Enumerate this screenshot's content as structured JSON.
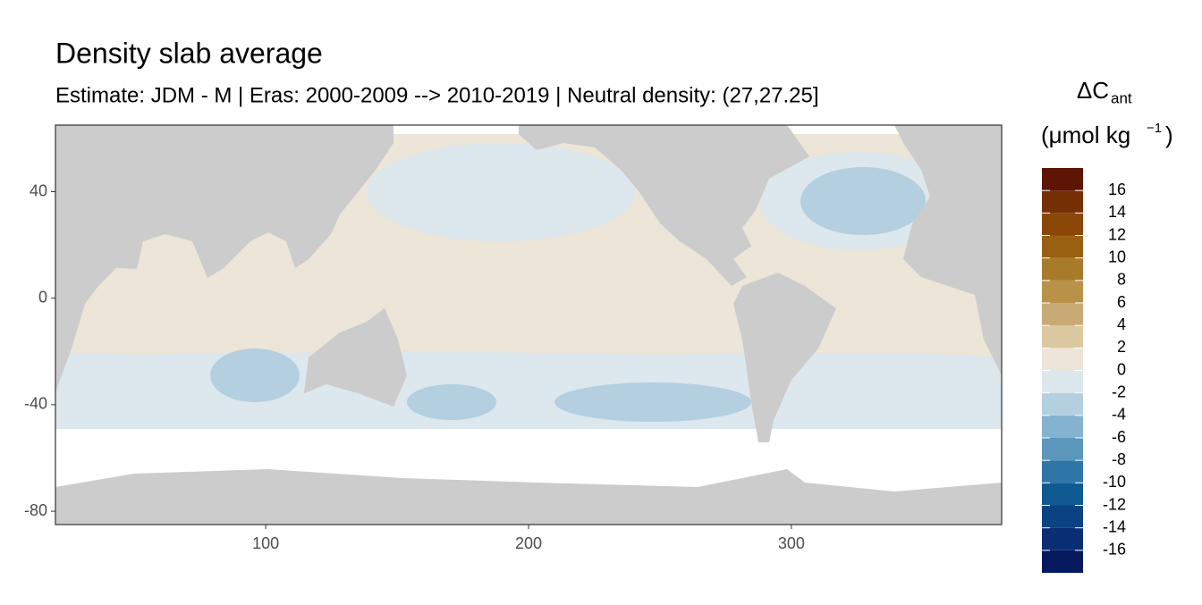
{
  "chart_data": {
    "type": "raster",
    "title": "Density slab average",
    "subtitle": "Estimate: JDM - M | Eras: 2000-2009 --> 2010-2019 | Neutral density: (27,27.25]",
    "xlim": [
      20,
      380
    ],
    "ylim": [
      -85,
      65
    ],
    "xticks": [
      100,
      200,
      300
    ],
    "yticks": [
      -80,
      -40,
      0,
      40
    ],
    "grid": true,
    "legend": {
      "title": "ΔC",
      "title_subscript": "ant",
      "unit": "(μmol kg",
      "unit_superscript": "−1",
      "unit_close": ")",
      "breaks": [
        -18,
        -16,
        -14,
        -12,
        -10,
        -8,
        -6,
        -4,
        -2,
        0,
        2,
        4,
        6,
        8,
        10,
        12,
        14,
        16,
        18
      ],
      "ticks": [
        -16,
        -14,
        -12,
        -10,
        -8,
        -6,
        -4,
        -2,
        0,
        2,
        4,
        6,
        8,
        10,
        12,
        14,
        16
      ],
      "colors": [
        "#06195e",
        "#0a2e74",
        "#0a4282",
        "#0f5a93",
        "#2f76a8",
        "#5b96bb",
        "#84b3cf",
        "#b3cfe0",
        "#dce7ee",
        "#ece5d8",
        "#dcc8a0",
        "#c8ab74",
        "#b89248",
        "#a87b2b",
        "#9a6012",
        "#8a4708",
        "#763006",
        "#5e1604"
      ]
    }
  }
}
